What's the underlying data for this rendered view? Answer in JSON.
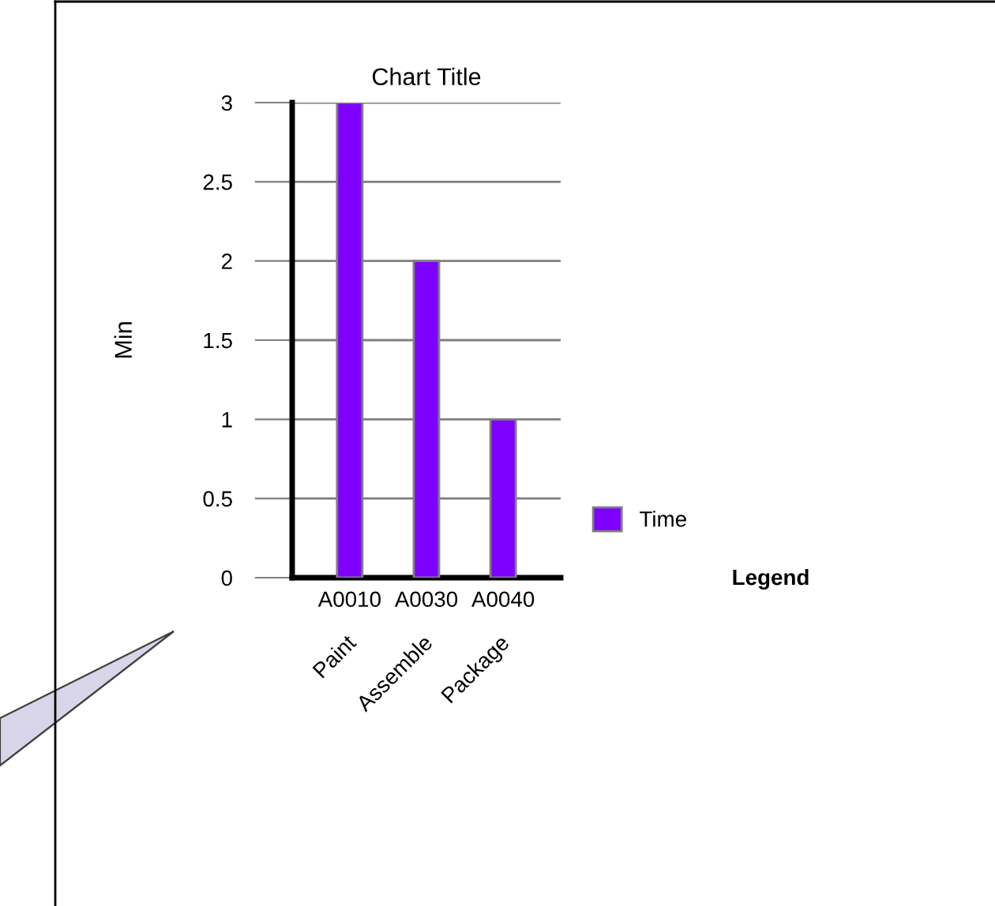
{
  "chart_data": {
    "type": "bar",
    "title": "Chart Title",
    "ylabel": "Min",
    "legend_title": "Legend",
    "categories": [
      "A0010",
      "A0030",
      "A0040"
    ],
    "series": [
      {
        "name": "Time",
        "color": "#8000ff",
        "values": [
          3,
          2,
          1
        ]
      }
    ],
    "ylim": [
      0,
      3
    ],
    "yticks": [
      0,
      0.5,
      1,
      1.5,
      2,
      2.5,
      3
    ],
    "grid": "y",
    "legend": "right",
    "annotations": [
      "Paint",
      "Assemble",
      "Package"
    ]
  }
}
